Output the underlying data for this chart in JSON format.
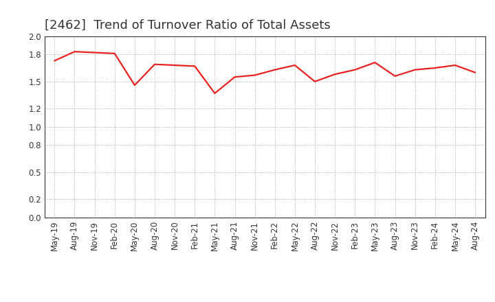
{
  "title": "[2462]  Trend of Turnover Ratio of Total Assets",
  "x_labels": [
    "May-19",
    "Aug-19",
    "Nov-19",
    "Feb-20",
    "May-20",
    "Aug-20",
    "Nov-20",
    "Feb-21",
    "May-21",
    "Aug-21",
    "Nov-21",
    "Feb-22",
    "May-22",
    "Aug-22",
    "Nov-22",
    "Feb-23",
    "May-23",
    "Aug-23",
    "Nov-23",
    "Feb-24",
    "May-24",
    "Aug-24"
  ],
  "y_values": [
    1.73,
    1.83,
    1.82,
    1.81,
    1.46,
    1.69,
    1.68,
    1.67,
    1.37,
    1.55,
    1.57,
    1.63,
    1.68,
    1.5,
    1.58,
    1.63,
    1.71,
    1.56,
    1.63,
    1.65,
    1.68,
    1.6
  ],
  "line_color": "#e82020",
  "line_width": 1.6,
  "ylim": [
    0.0,
    2.0
  ],
  "yticks": [
    0.0,
    0.2,
    0.5,
    0.8,
    1.0,
    1.2,
    1.5,
    1.8,
    2.0
  ],
  "background_color": "#ffffff",
  "grid_color": "#999999",
  "title_fontsize": 13,
  "tick_fontsize": 8.5,
  "title_color": "#333333"
}
